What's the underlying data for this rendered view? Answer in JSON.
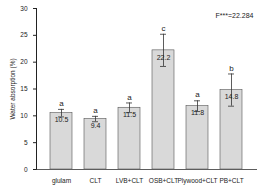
{
  "chart_data": {
    "type": "bar",
    "y_label": "Water absorption (%)",
    "annotation": "F***=22.284",
    "categories": [
      "glulam",
      "CLT",
      "LVB+CLT",
      "OSB+CLT",
      "Plywood+CLT",
      "PB+CLT"
    ],
    "values": [
      10.5,
      9.4,
      11.5,
      22.2,
      11.8,
      14.8
    ],
    "errors": [
      0.7,
      0.5,
      0.9,
      3.0,
      1.0,
      3.0
    ],
    "letters": [
      "a",
      "a",
      "a",
      "c",
      "a",
      "b"
    ],
    "color": "#d9d9d9",
    "ylim": [
      0,
      30
    ],
    "yticks": [
      0,
      5,
      10,
      15,
      20,
      25,
      30
    ],
    "data_labels": true,
    "grid": false
  }
}
